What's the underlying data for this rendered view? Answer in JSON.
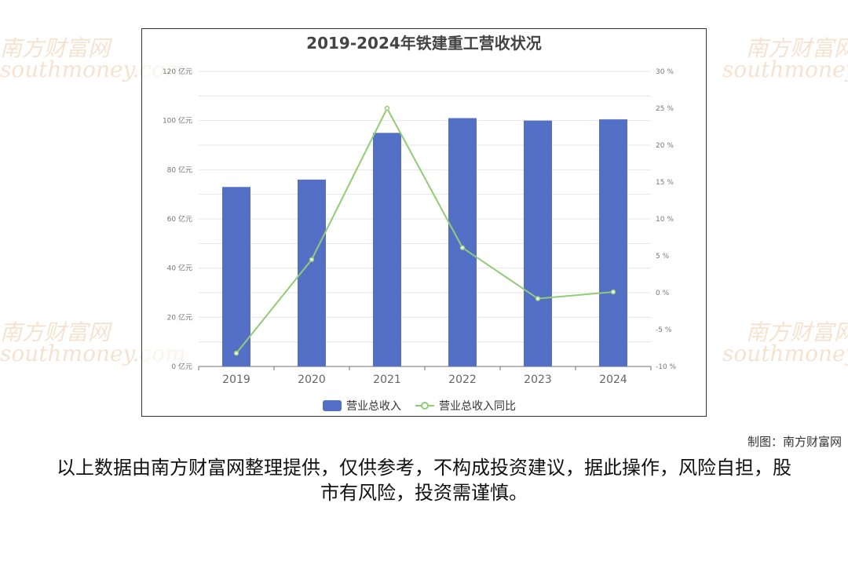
{
  "watermark": {
    "brand": "南方财富网",
    "domain": "southmoney.com"
  },
  "chart_data": {
    "type": "bar",
    "title": "2019-2024年铁建重工营收状况",
    "categories": [
      "2019",
      "2020",
      "2021",
      "2022",
      "2023",
      "2024"
    ],
    "series": [
      {
        "name": "营业总收入",
        "type": "bar",
        "axis": "left",
        "unit": "亿元",
        "values": [
          73,
          76,
          95,
          101,
          100,
          100.5
        ],
        "color": "#5470c6"
      },
      {
        "name": "营业总收入同比",
        "type": "line",
        "axis": "right",
        "unit": "%",
        "values": [
          -8.2,
          4.5,
          25,
          6.1,
          -0.8,
          0.1
        ],
        "color": "#91cc75"
      }
    ],
    "y_left": {
      "min": 0,
      "max": 120,
      "step": 20,
      "unit": "亿元",
      "ticks": [
        "0 亿元",
        "20 亿元",
        "40 亿元",
        "60 亿元",
        "80 亿元",
        "100 亿元",
        "120 亿元"
      ]
    },
    "y_right": {
      "min": -10,
      "max": 30,
      "step": 5,
      "unit": "%",
      "ticks": [
        "-10 %",
        "-5 %",
        "0 %",
        "5 %",
        "10 %",
        "15 %",
        "20 %",
        "25 %",
        "30 %"
      ]
    },
    "grid": true,
    "legend_position": "bottom-center"
  },
  "credit": "制图：南方财富网",
  "disclaimer": "以上数据由南方财富网整理提供，仅供参考，不构成投资建议，据此操作，风险自担，股市有风险，投资需谨慎。"
}
